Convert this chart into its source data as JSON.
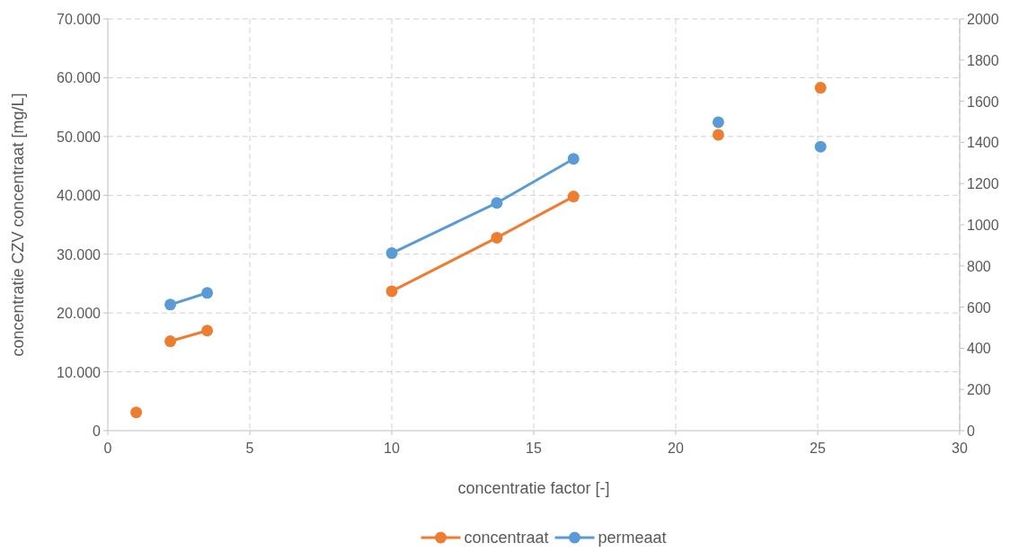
{
  "chart_data": {
    "type": "line",
    "xlabel": "concentratie factor [-]",
    "ylabel": "concentratie CZV concentraat  [mg/L]",
    "xlim": [
      0,
      30
    ],
    "xticks": [
      0,
      5,
      10,
      15,
      20,
      25,
      30
    ],
    "ylim": [
      0,
      70000
    ],
    "yticks": [
      {
        "value": 0,
        "label": "0"
      },
      {
        "value": 10000,
        "label": "10.000"
      },
      {
        "value": 20000,
        "label": "20.000"
      },
      {
        "value": 30000,
        "label": "30.000"
      },
      {
        "value": 40000,
        "label": "40.000"
      },
      {
        "value": 50000,
        "label": "50.000"
      },
      {
        "value": 60000,
        "label": "60.000"
      },
      {
        "value": 70000,
        "label": "70.000"
      }
    ],
    "y2lim": [
      0,
      2000
    ],
    "y2ticks": [
      0,
      200,
      400,
      600,
      800,
      1000,
      1200,
      1400,
      1600,
      1800,
      2000
    ],
    "grid": true,
    "legend": "bottom",
    "marker": "circle",
    "line_style": "solid",
    "series": [
      {
        "name": "concentraat",
        "color": "#ed7d31",
        "x": [
          1.0,
          1.6,
          2.2,
          3.5,
          6.8,
          10.0,
          13.7,
          16.4,
          19.0,
          21.5,
          23.3,
          25.1
        ],
        "values": [
          3100,
          null,
          15200,
          17000,
          null,
          23700,
          32800,
          39800,
          null,
          50300,
          null,
          58300
        ]
      },
      {
        "name": "permeaat",
        "color": "#5b9bd5",
        "axis": "y2",
        "x": [
          2.2,
          3.5,
          6.8,
          10.0,
          13.7,
          16.4,
          19.0,
          21.5,
          23.3,
          25.1
        ],
        "values": [
          612,
          669,
          null,
          862,
          1106,
          1320,
          null,
          1498,
          null,
          1379
        ]
      }
    ]
  }
}
